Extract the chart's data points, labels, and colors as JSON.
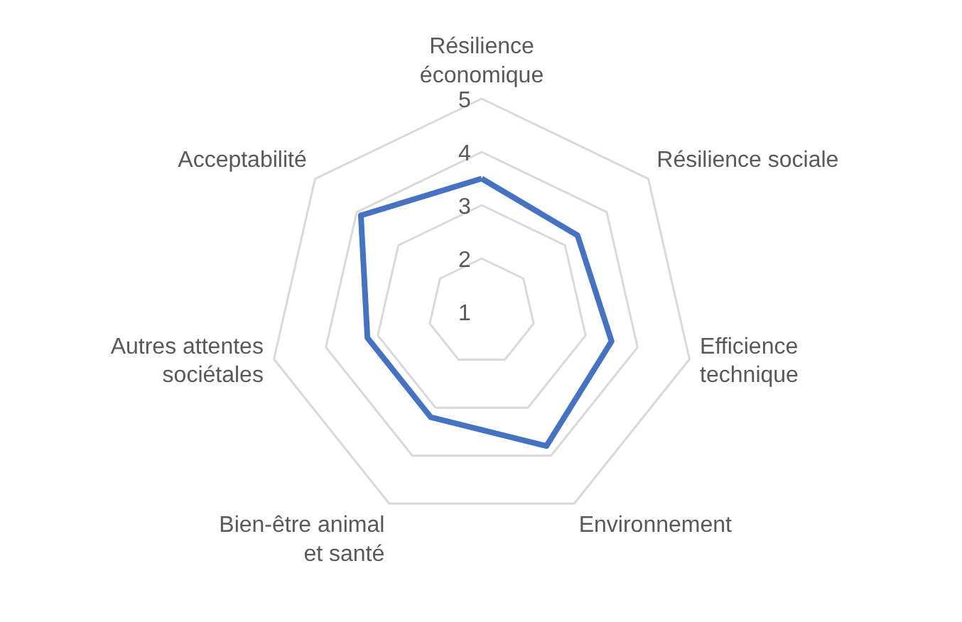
{
  "chart_data": {
    "type": "radar",
    "categories": [
      "Résilience\néconomique",
      "Résilience sociale",
      "Efficience\ntechnique",
      "Environnement",
      "Bien-être animal\net santé",
      "Autres attentes\nsociétales",
      "Acceptabilité"
    ],
    "series": [
      {
        "color": "#4472c4",
        "values": [
          3.5,
          3.3,
          3.5,
          3.8,
          3.2,
          3.2,
          3.9
        ]
      }
    ],
    "ylim": [
      1,
      5
    ],
    "yticks": [
      1,
      2,
      3,
      4,
      5
    ],
    "grid": true,
    "marker": "none",
    "line_style": "solid"
  }
}
